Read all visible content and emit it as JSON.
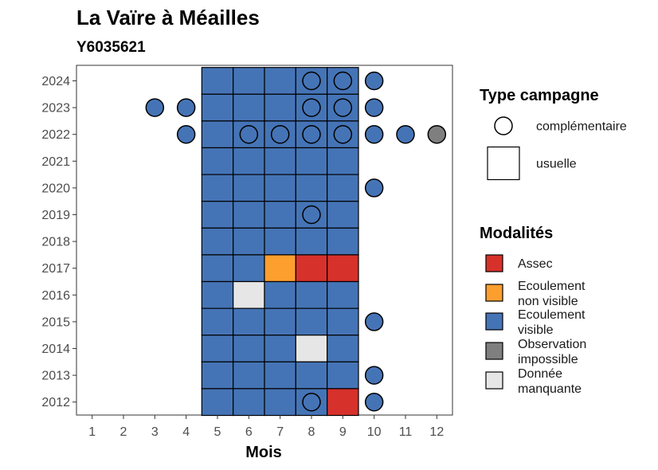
{
  "chart_data": {
    "type": "heatmap",
    "title": "La Vaïre à Méailles",
    "subtitle": "Y6035621",
    "xlabel": "Mois",
    "ylabel": "",
    "x_ticks": [
      "1",
      "2",
      "3",
      "4",
      "5",
      "6",
      "7",
      "8",
      "9",
      "10",
      "11",
      "12"
    ],
    "y_ticks": [
      "2012",
      "2013",
      "2014",
      "2015",
      "2016",
      "2017",
      "2018",
      "2019",
      "2020",
      "2021",
      "2022",
      "2023",
      "2024"
    ],
    "grid": false,
    "legend_position": "right",
    "colors": {
      "Assec": "#d7312b",
      "Ecoulement non visible": "#fd9f2f",
      "Ecoulement visible": "#4574b6",
      "Observation impossible": "#7f7f7f",
      "Donnée manquante": "#e6e6e6"
    },
    "legend_type": {
      "title": "Type campagne",
      "items": [
        {
          "label": "complémentaire",
          "shape": "circle"
        },
        {
          "label": "usuelle",
          "shape": "square"
        }
      ]
    },
    "legend_modalites": {
      "title": "Modalités",
      "items": [
        {
          "key": "Assec",
          "lines": [
            "Assec"
          ]
        },
        {
          "key": "Ecoulement non visible",
          "lines": [
            "Ecoulement",
            "non visible"
          ]
        },
        {
          "key": "Ecoulement visible",
          "lines": [
            "Ecoulement",
            "visible"
          ]
        },
        {
          "key": "Observation impossible",
          "lines": [
            "Observation",
            "impossible"
          ]
        },
        {
          "key": "Donnée manquante",
          "lines": [
            "Donnée",
            "manquante"
          ]
        }
      ]
    },
    "usuelle": [
      {
        "year": 2024,
        "months": [
          "Ecoulement visible",
          "Ecoulement visible",
          "Ecoulement visible",
          "Ecoulement visible",
          "Ecoulement visible"
        ]
      },
      {
        "year": 2023,
        "months": [
          "Ecoulement visible",
          "Ecoulement visible",
          "Ecoulement visible",
          "Ecoulement visible",
          "Ecoulement visible"
        ]
      },
      {
        "year": 2022,
        "months": [
          "Ecoulement visible",
          "Ecoulement visible",
          "Ecoulement visible",
          "Ecoulement visible",
          "Ecoulement visible"
        ]
      },
      {
        "year": 2021,
        "months": [
          "Ecoulement visible",
          "Ecoulement visible",
          "Ecoulement visible",
          "Ecoulement visible",
          "Ecoulement visible"
        ]
      },
      {
        "year": 2020,
        "months": [
          "Ecoulement visible",
          "Ecoulement visible",
          "Ecoulement visible",
          "Ecoulement visible",
          "Ecoulement visible"
        ]
      },
      {
        "year": 2019,
        "months": [
          "Ecoulement visible",
          "Ecoulement visible",
          "Ecoulement visible",
          "Ecoulement visible",
          "Ecoulement visible"
        ]
      },
      {
        "year": 2018,
        "months": [
          "Ecoulement visible",
          "Ecoulement visible",
          "Ecoulement visible",
          "Ecoulement visible",
          "Ecoulement visible"
        ]
      },
      {
        "year": 2017,
        "months": [
          "Ecoulement visible",
          "Ecoulement visible",
          "Ecoulement non visible",
          "Assec",
          "Assec"
        ]
      },
      {
        "year": 2016,
        "months": [
          "Ecoulement visible",
          "Donnée manquante",
          "Ecoulement visible",
          "Ecoulement visible",
          "Ecoulement visible"
        ]
      },
      {
        "year": 2015,
        "months": [
          "Ecoulement visible",
          "Ecoulement visible",
          "Ecoulement visible",
          "Ecoulement visible",
          "Ecoulement visible"
        ]
      },
      {
        "year": 2014,
        "months": [
          "Ecoulement visible",
          "Ecoulement visible",
          "Ecoulement visible",
          "Donnée manquante",
          "Ecoulement visible"
        ]
      },
      {
        "year": 2013,
        "months": [
          "Ecoulement visible",
          "Ecoulement visible",
          "Ecoulement visible",
          "Ecoulement visible",
          "Ecoulement visible"
        ]
      },
      {
        "year": 2012,
        "months": [
          "Ecoulement visible",
          "Ecoulement visible",
          "Ecoulement visible",
          "Ecoulement visible",
          "Assec"
        ]
      }
    ],
    "usuelle_month_start": 5,
    "complementaire": [
      {
        "year": 2024,
        "month": 8,
        "value": "Ecoulement visible"
      },
      {
        "year": 2024,
        "month": 9,
        "value": "Ecoulement visible"
      },
      {
        "year": 2024,
        "month": 10,
        "value": "Ecoulement visible"
      },
      {
        "year": 2023,
        "month": 3,
        "value": "Ecoulement visible"
      },
      {
        "year": 2023,
        "month": 4,
        "value": "Ecoulement visible"
      },
      {
        "year": 2023,
        "month": 8,
        "value": "Ecoulement visible"
      },
      {
        "year": 2023,
        "month": 9,
        "value": "Ecoulement visible"
      },
      {
        "year": 2023,
        "month": 10,
        "value": "Ecoulement visible"
      },
      {
        "year": 2022,
        "month": 4,
        "value": "Ecoulement visible"
      },
      {
        "year": 2022,
        "month": 6,
        "value": "Ecoulement visible"
      },
      {
        "year": 2022,
        "month": 7,
        "value": "Ecoulement visible"
      },
      {
        "year": 2022,
        "month": 8,
        "value": "Ecoulement visible"
      },
      {
        "year": 2022,
        "month": 9,
        "value": "Ecoulement visible"
      },
      {
        "year": 2022,
        "month": 10,
        "value": "Ecoulement visible"
      },
      {
        "year": 2022,
        "month": 11,
        "value": "Ecoulement visible"
      },
      {
        "year": 2022,
        "month": 12,
        "value": "Observation impossible"
      },
      {
        "year": 2020,
        "month": 10,
        "value": "Ecoulement visible"
      },
      {
        "year": 2019,
        "month": 8,
        "value": "Ecoulement visible"
      },
      {
        "year": 2015,
        "month": 10,
        "value": "Ecoulement visible"
      },
      {
        "year": 2013,
        "month": 10,
        "value": "Ecoulement visible"
      },
      {
        "year": 2012,
        "month": 8,
        "value": "Ecoulement visible"
      },
      {
        "year": 2012,
        "month": 10,
        "value": "Ecoulement visible"
      }
    ]
  }
}
